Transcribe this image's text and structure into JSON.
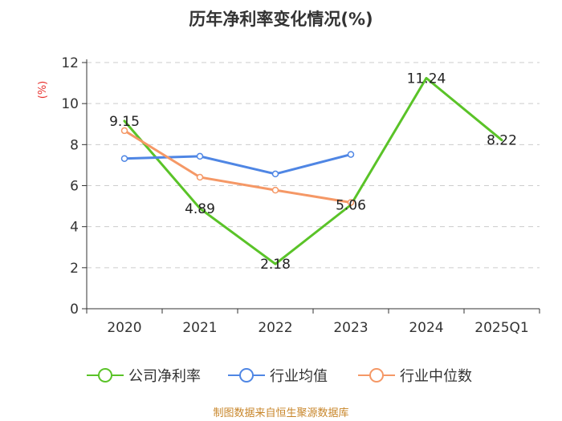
{
  "chart_data": {
    "type": "line",
    "title": "历年净利率变化情况(%)",
    "ylabel": "(%)",
    "xlabel": "",
    "categories": [
      "2020",
      "2021",
      "2022",
      "2023",
      "2024",
      "2025Q1"
    ],
    "ylim": [
      0,
      12
    ],
    "yticks": [
      0,
      2,
      4,
      6,
      8,
      10,
      12
    ],
    "grid": true,
    "legend_position": "bottom",
    "series": [
      {
        "name": "公司净利率",
        "color": "#5ac328",
        "values": [
          9.15,
          4.89,
          2.18,
          5.06,
          11.24,
          8.22
        ],
        "labels": [
          "9.15",
          "4.89",
          "2.18",
          "5.06",
          "11.24",
          "8.22"
        ],
        "show_markers": false
      },
      {
        "name": "行业均值",
        "color": "#4f86e4",
        "values": [
          7.32,
          7.43,
          6.57,
          7.52,
          null,
          null
        ],
        "show_markers": true
      },
      {
        "name": "行业中位数",
        "color": "#f59866",
        "values": [
          8.68,
          6.41,
          5.78,
          5.18,
          null,
          null
        ],
        "show_markers": true
      }
    ],
    "source": "制图数据来自恒生聚源数据库"
  }
}
